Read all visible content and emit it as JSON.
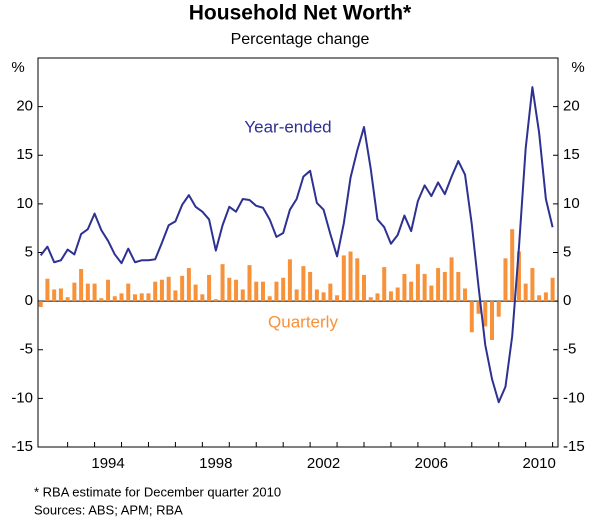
{
  "chart_data": {
    "type": "bar-line",
    "title": "Household Net Worth*",
    "subtitle": "Percentage change",
    "y_label": "%",
    "y2_label": "%",
    "footnotes": [
      "*     RBA estimate for December quarter 2010",
      "Sources: ABS; APM; RBA"
    ],
    "x": [
      1992,
      1992.25,
      1992.5,
      1992.75,
      1993,
      1993.25,
      1993.5,
      1993.75,
      1994,
      1994.25,
      1994.5,
      1994.75,
      1995,
      1995.25,
      1995.5,
      1995.75,
      1996,
      1996.25,
      1996.5,
      1996.75,
      1997,
      1997.25,
      1997.5,
      1997.75,
      1998,
      1998.25,
      1998.5,
      1998.75,
      1999,
      1999.25,
      1999.5,
      1999.75,
      2000,
      2000.25,
      2000.5,
      2000.75,
      2001,
      2001.25,
      2001.5,
      2001.75,
      2002,
      2002.25,
      2002.5,
      2002.75,
      2003,
      2003.25,
      2003.5,
      2003.75,
      2004,
      2004.25,
      2004.5,
      2004.75,
      2005,
      2005.25,
      2005.5,
      2005.75,
      2006,
      2006.25,
      2006.5,
      2006.75,
      2007,
      2007.25,
      2007.5,
      2007.75,
      2008,
      2008.25,
      2008.5,
      2008.75,
      2009,
      2009.25,
      2009.5,
      2009.75,
      2010,
      2010.25,
      2010.5,
      2010.75,
      2011
    ],
    "series": [
      {
        "name": "Quarterly",
        "kind": "bar",
        "color": "#f7923a",
        "values": [
          -0.6,
          2.3,
          1.2,
          1.3,
          0.4,
          1.9,
          3.3,
          1.8,
          1.8,
          0.3,
          2.2,
          0.5,
          0.8,
          1.8,
          0.7,
          0.8,
          0.8,
          2.0,
          2.2,
          2.5,
          1.1,
          2.6,
          3.4,
          1.7,
          0.7,
          2.7,
          0.2,
          3.8,
          2.4,
          2.2,
          1.2,
          3.7,
          2.0,
          2.0,
          0.5,
          2.0,
          2.4,
          4.3,
          1.2,
          3.6,
          3.0,
          1.2,
          0.9,
          1.8,
          0.6,
          4.7,
          5.1,
          4.4,
          2.7,
          0.4,
          0.8,
          3.5,
          1.0,
          1.4,
          2.8,
          2.0,
          3.8,
          2.8,
          1.6,
          3.4,
          3.0,
          4.5,
          3.0,
          1.3,
          -3.2,
          -1.3,
          -2.6,
          -4.0,
          -1.6,
          4.4,
          7.4,
          5.1,
          1.8,
          3.4,
          0.6,
          0.9,
          2.4
        ]
      },
      {
        "name": "Year-ended",
        "kind": "line",
        "color": "#2e3192",
        "values": [
          4.7,
          5.6,
          4.0,
          4.2,
          5.3,
          4.8,
          6.9,
          7.4,
          9.0,
          7.3,
          6.2,
          4.8,
          3.9,
          5.4,
          4.0,
          4.2,
          4.2,
          4.3,
          6.0,
          7.8,
          8.2,
          9.9,
          10.9,
          9.7,
          9.2,
          8.4,
          5.2,
          7.8,
          9.7,
          9.2,
          10.5,
          10.4,
          9.8,
          9.6,
          8.4,
          6.6,
          7.0,
          9.4,
          10.5,
          12.8,
          13.4,
          10.1,
          9.4,
          6.9,
          4.6,
          8.0,
          12.7,
          15.5,
          17.9,
          13.6,
          8.4,
          7.6,
          5.9,
          6.8,
          8.8,
          7.2,
          10.3,
          11.9,
          10.8,
          12.2,
          11.0,
          12.8,
          14.4,
          13.0,
          7.9,
          1.5,
          -4.5,
          -8.0,
          -10.4,
          -8.8,
          -3.6,
          5.5,
          15.7,
          22.0,
          17.3,
          10.5,
          7.6
        ]
      }
    ],
    "xlim": [
      1991.9,
      2011.2
    ],
    "xticks": [
      1993,
      1994,
      1995,
      1996,
      1997,
      1998,
      1999,
      2000,
      2001,
      2002,
      2003,
      2004,
      2005,
      2006,
      2007,
      2008,
      2009,
      2010,
      2011
    ],
    "xlabels": [
      1994,
      1998,
      2002,
      2006,
      2010
    ],
    "ylim": [
      -15,
      25
    ],
    "yticks": [
      -15,
      -10,
      -5,
      0,
      5,
      10,
      15,
      20
    ],
    "y2lim": [
      -15,
      25
    ],
    "y2ticks": [
      -15,
      -10,
      -5,
      0,
      5,
      10,
      15,
      20
    ]
  }
}
